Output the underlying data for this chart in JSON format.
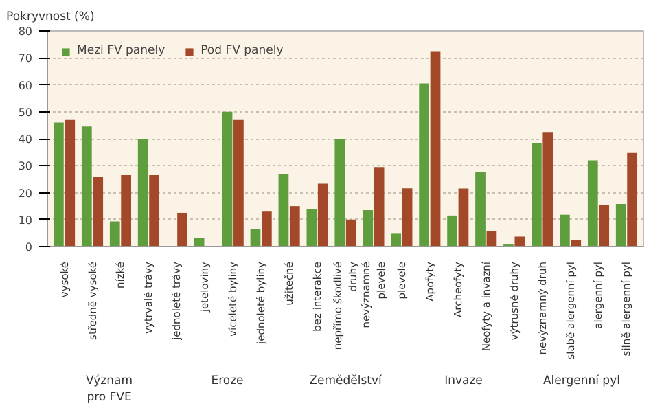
{
  "chart_data": {
    "type": "bar",
    "ylabel": "Pokryvnost (%)",
    "categories": [
      "vysoké",
      "středně vysoké",
      "nízké",
      "vytrvalé trávy",
      "jednoleté trávy",
      "jeteloviny",
      "víceleté byliny",
      "jednoleté byliny",
      "užitečné",
      "bez interakce",
      "nepřímo škodlivé\ndruhy",
      "nevýznamné\nplevele",
      "plevele",
      "Apofyty",
      "Archeofyty",
      "Neofyty a invazní",
      "výtrusné druhy",
      "nevýznamný druh",
      "slabě alergenní pyl",
      "alergenní pyl",
      "silně alergenní pyl"
    ],
    "series": [
      {
        "name": "Mezi FV panely",
        "color": "#5f9e3c",
        "values": [
          46,
          44.5,
          9.3,
          40,
          0,
          3.2,
          50,
          6.5,
          27,
          14,
          40,
          13.5,
          5,
          60.5,
          11.5,
          27.5,
          1,
          38.5,
          11.8,
          32,
          15.8
        ]
      },
      {
        "name": "Pod FV panely",
        "color": "#a3492a",
        "values": [
          47.2,
          26,
          26.5,
          26.5,
          12.5,
          0,
          47.2,
          13.2,
          15,
          23.3,
          10,
          29.5,
          21.6,
          72.5,
          21.5,
          5.6,
          3.7,
          42.5,
          2.5,
          15.3,
          34.7
        ]
      }
    ],
    "ylim": [
      0,
      80
    ],
    "yticks": [
      0,
      10,
      20,
      30,
      40,
      50,
      60,
      70,
      80
    ],
    "grid": "y",
    "legend": "top left",
    "annotations": [
      "Význam\npro FVE",
      "Eroze",
      "Zemědělství",
      "Invaze",
      "Alergenní pyl"
    ]
  }
}
